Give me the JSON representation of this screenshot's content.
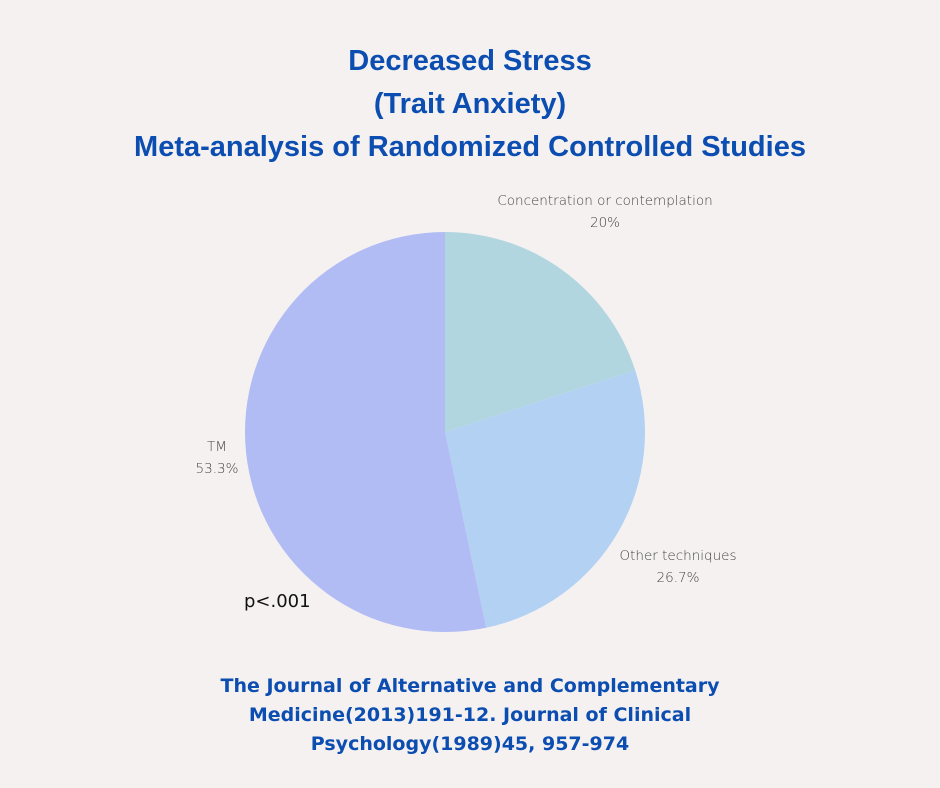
{
  "chart_data": {
    "type": "pie",
    "title": [
      "Decreased Stress",
      "(Trait Anxiety)",
      "Meta-analysis of Randomized Controlled Studies"
    ],
    "slices": [
      {
        "label": "Concentration or contemplation",
        "value": 20,
        "value_label": "20%",
        "color": "#b1d6e0"
      },
      {
        "label": "Other techniques",
        "value": 26.7,
        "value_label": "26.7%",
        "color": "#b3d1f2"
      },
      {
        "label": "TM",
        "value": 53.3,
        "value_label": "53.3%",
        "color": "#b2bcf4"
      }
    ],
    "start_angle": "top, clockwise",
    "annotation": "p<.001"
  },
  "footer": [
    "The Journal of Alternative and Complementary",
    "Medicine(2013)191-12. Journal of Clinical",
    "Psychology(1989)45, 957-974"
  ],
  "colors": {
    "title": "#0b4db0",
    "background": "#f5f1f1"
  }
}
